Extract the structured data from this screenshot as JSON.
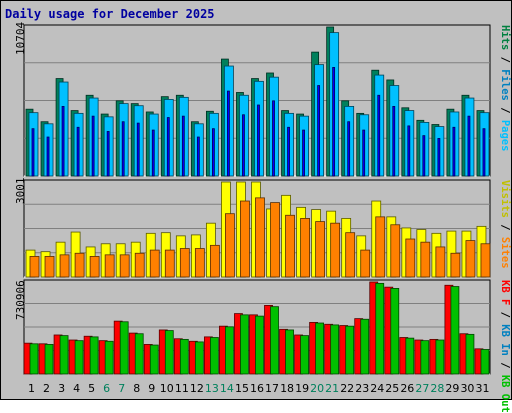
{
  "chart_data": {
    "title": "Daily usage for December 2025",
    "x_ticks": [
      "1",
      "2",
      "3",
      "4",
      "5",
      "6",
      "7",
      "8",
      "9",
      "10",
      "11",
      "12",
      "13",
      "14",
      "15",
      "16",
      "17",
      "18",
      "19",
      "20",
      "21",
      "22",
      "23",
      "24",
      "25",
      "26",
      "27",
      "28",
      "29",
      "30",
      "31"
    ],
    "weekend_days": [
      6,
      7,
      13,
      14,
      20,
      21,
      27,
      28
    ],
    "weekend_color": "#00805c",
    "weekday_color": "#000000",
    "panels": [
      {
        "type": "bar",
        "ymax_label": "10704",
        "ylim": [
          0,
          10704
        ],
        "side_labels": [
          {
            "text": "Hits",
            "color": "#008040"
          },
          {
            "text": " / ",
            "color": "#000000"
          },
          {
            "text": "Files",
            "color": "#0080c0"
          },
          {
            "text": " / ",
            "color": "#000000"
          },
          {
            "text": "Pages",
            "color": "#00c0ff"
          }
        ],
        "series": [
          {
            "name": "Hits",
            "color": "#00805c",
            "values": [
              4800,
              3900,
              7000,
              4700,
              5800,
              4450,
              5400,
              5200,
              4600,
              5700,
              5800,
              3900,
              4650,
              8400,
              6000,
              7000,
              7400,
              4700,
              4450,
              8900,
              10704,
              5400,
              4500,
              7600,
              6900,
              4900,
              4000,
              3700,
              4800,
              5800,
              4700
            ]
          },
          {
            "name": "Files",
            "color": "#00c0ff",
            "values": [
              4550,
              3750,
              6750,
              4500,
              5600,
              4250,
              5200,
              5050,
              4450,
              5500,
              5650,
              3750,
              4500,
              7900,
              5800,
              6800,
              7100,
              4500,
              4300,
              8000,
              10300,
              5000,
              4400,
              7250,
              6500,
              4700,
              3850,
              3550,
              4600,
              5600,
              4550
            ]
          },
          {
            "name": "Pages",
            "color": "#0000ff",
            "values": [
              3400,
              2800,
              5000,
              3500,
              4300,
              3200,
              3900,
              3800,
              3300,
              4200,
              4300,
              2800,
              3400,
              6100,
              4400,
              5100,
              5400,
              3500,
              3300,
              6500,
              7800,
              3900,
              3300,
              5800,
              5000,
              3600,
              2900,
              2700,
              3500,
              4300,
              3400
            ]
          }
        ]
      },
      {
        "type": "bar",
        "ymax_label": "3001",
        "ylim": [
          0,
          3001
        ],
        "side_labels": [
          {
            "text": "Visits",
            "color": "#c0c000"
          },
          {
            "text": " / ",
            "color": "#000000"
          },
          {
            "text": "Sites",
            "color": "#ff8000"
          }
        ],
        "series": [
          {
            "name": "Visits",
            "color": "#ffff00",
            "values": [
              850,
              800,
              1100,
              1420,
              950,
              1050,
              1050,
              1100,
              1380,
              1400,
              1300,
              1330,
              1700,
              3001,
              3001,
              3001,
              2150,
              2580,
              2200,
              2130,
              2080,
              1850,
              1300,
              2400,
              1900,
              1550,
              1500,
              1380,
              1450,
              1450,
              1600
            ]
          },
          {
            "name": "Sites",
            "color": "#ff8000",
            "values": [
              650,
              650,
              700,
              750,
              650,
              700,
              700,
              750,
              850,
              850,
              900,
              900,
              1000,
              2000,
              2400,
              2500,
              2350,
              1950,
              1850,
              1750,
              1700,
              1400,
              850,
              1900,
              1650,
              1200,
              1100,
              950,
              750,
              1150,
              1050
            ]
          }
        ]
      },
      {
        "type": "bar",
        "ymax_label": "730906",
        "ylim": [
          0,
          730906
        ],
        "side_labels": [
          {
            "text": "KB F",
            "color": "#ff0000"
          },
          {
            "text": " / ",
            "color": "#000000"
          },
          {
            "text": "KB In",
            "color": "#0080c0"
          },
          {
            "text": " / ",
            "color": "#000000"
          },
          {
            "text": "KB Out",
            "color": "#00c000"
          }
        ],
        "series": [
          {
            "name": "KB F",
            "color": "#ff0000",
            "values": [
              245000,
              240000,
              310000,
              270000,
              300000,
              265000,
              420000,
              325000,
              235000,
              350000,
              280000,
              260000,
              295000,
              380000,
              480000,
              470000,
              545000,
              355000,
              310000,
              410000,
              395000,
              385000,
              440000,
              730906,
              690000,
              290000,
              270000,
              275000,
              705000,
              320000,
              200000
            ]
          },
          {
            "name": "KB Out",
            "color": "#00c000",
            "values": [
              240000,
              235000,
              305000,
              265000,
              295000,
              260000,
              415000,
              320000,
              230000,
              345000,
              275000,
              255000,
              290000,
              375000,
              470000,
              460000,
              535000,
              350000,
              305000,
              405000,
              390000,
              380000,
              435000,
              720000,
              680000,
              285000,
              265000,
              270000,
              695000,
              315000,
              195000
            ]
          }
        ]
      }
    ]
  }
}
